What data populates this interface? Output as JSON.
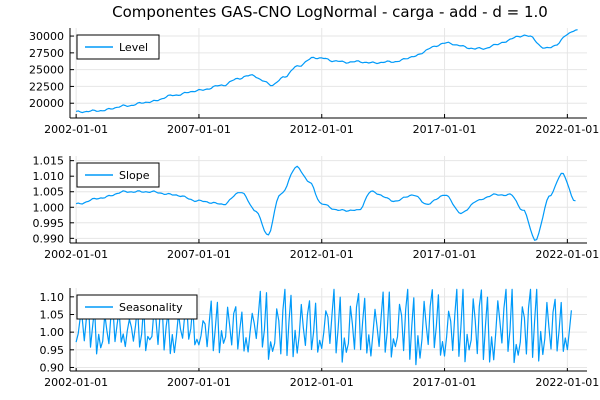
{
  "title": "Componentes GAS-CNO LogNormal - carga - add - d = 1.0",
  "line_color": "#009AF9",
  "chart_data": [
    {
      "type": "line",
      "series": [
        {
          "name": "Level"
        }
      ],
      "legend_position": "top-left",
      "grid": true,
      "x_ticks": [
        "2002-01-01",
        "2007-01-01",
        "2012-01-01",
        "2017-01-01",
        "2022-01-01"
      ],
      "y_ticks": [
        "20000",
        "22500",
        "25000",
        "27500",
        "30000"
      ],
      "ylim": [
        17800,
        31200
      ],
      "knots_year": [
        2002.0,
        2003.0,
        2004.0,
        2005.0,
        2006.0,
        2007.0,
        2008.0,
        2008.6,
        2009.2,
        2009.6,
        2010.0,
        2010.5,
        2011.0,
        2011.7,
        2012.0,
        2012.5,
        2013.0,
        2013.5,
        2014.0,
        2015.0,
        2015.8,
        2016.5,
        2017.0,
        2017.5,
        2018.0,
        2018.6,
        2019.0,
        2019.5,
        2020.0,
        2020.5,
        2021.0,
        2021.5,
        2022.0,
        2022.4
      ],
      "knots_value": [
        18700,
        18900,
        19600,
        20200,
        21200,
        21900,
        22700,
        23700,
        24200,
        23300,
        22700,
        24000,
        25500,
        26800,
        26700,
        26300,
        26100,
        26200,
        26000,
        26200,
        27000,
        28300,
        29000,
        28700,
        28200,
        28100,
        28600,
        29200,
        30000,
        30000,
        28200,
        28500,
        30300,
        30900
      ]
    },
    {
      "type": "line",
      "series": [
        {
          "name": "Slope"
        }
      ],
      "legend_position": "top-left",
      "grid": true,
      "x_ticks": [
        "2002-01-01",
        "2007-01-01",
        "2012-01-01",
        "2017-01-01",
        "2022-01-01"
      ],
      "y_ticks": [
        "0.990",
        "0.995",
        "1.000",
        "1.005",
        "1.010",
        "1.015"
      ],
      "ylim": [
        0.9885,
        1.0165
      ],
      "knots_year": [
        2002.0,
        2003.0,
        2004.0,
        2005.0,
        2006.0,
        2007.0,
        2008.0,
        2008.7,
        2009.3,
        2009.8,
        2010.3,
        2011.0,
        2011.5,
        2012.0,
        2012.7,
        2013.5,
        2014.0,
        2015.0,
        2015.7,
        2016.3,
        2017.0,
        2017.7,
        2018.3,
        2019.0,
        2019.7,
        2020.2,
        2020.7,
        2021.3,
        2021.8,
        2022.3
      ],
      "knots_value": [
        1.001,
        1.003,
        1.005,
        1.005,
        1.004,
        1.002,
        1.001,
        1.005,
        0.999,
        0.991,
        1.004,
        1.013,
        1.008,
        1.001,
        0.999,
        0.999,
        1.005,
        1.002,
        1.004,
        1.001,
        1.004,
        0.998,
        1.002,
        1.004,
        1.004,
        0.999,
        0.9895,
        1.004,
        1.011,
        1.002
      ]
    },
    {
      "type": "line",
      "series": [
        {
          "name": "Seasonality"
        }
      ],
      "legend_position": "top-left",
      "grid": true,
      "x_ticks": [
        "2002-01-01",
        "2007-01-01",
        "2012-01-01",
        "2017-01-01",
        "2022-01-01"
      ],
      "y_ticks": [
        "0.90",
        "0.95",
        "1.00",
        "1.05",
        "1.10"
      ],
      "ylim": [
        0.89,
        1.125
      ],
      "start_year": 2002.0,
      "months": 243,
      "seasonal_pattern": [
        0.96,
        0.99,
        1.05,
        1.02,
        0.97,
        1.04,
        1.08,
        0.96,
        1.01,
        1.07,
        0.95,
        0.99
      ],
      "amplitude_knots_year": [
        2002,
        2007,
        2009,
        2010,
        2012,
        2015,
        2020,
        2022.3
      ],
      "amplitude_knots": [
        0.9,
        1.0,
        1.1,
        1.5,
        1.3,
        1.5,
        1.7,
        1.3
      ]
    }
  ]
}
